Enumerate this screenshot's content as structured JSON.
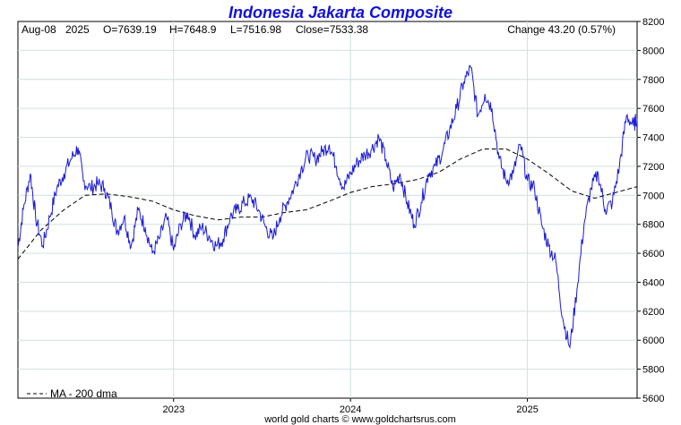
{
  "chart_data": {
    "type": "line",
    "title": "Indonesia Jakarta Composite",
    "info": {
      "date": "Aug-08",
      "year": "2025",
      "open": "O=7639.19",
      "high": "H=7648.9",
      "low": "L=7516.98",
      "close": "Close=7533.38",
      "change": "Change 43.20 (0.57%)"
    },
    "ylim": [
      5600,
      8200
    ],
    "yticks": [
      5600,
      5800,
      6000,
      6200,
      6400,
      6600,
      6800,
      7000,
      7200,
      7400,
      7600,
      7800,
      8000,
      8200
    ],
    "xlim": [
      2022.12,
      2025.62
    ],
    "xticks": [
      {
        "label": "2023",
        "value": 2023.0
      },
      {
        "label": "2024",
        "value": 2024.0
      },
      {
        "label": "2025",
        "value": 2025.0
      }
    ],
    "grid": true,
    "legend": "bottom-left",
    "legend_label": "MA - 200 dma",
    "footer": "world gold charts © www.goldchartsrus.com",
    "colors": {
      "price": "#1a1ad8",
      "ma": "#000000",
      "title": "#1010e0",
      "grid": "#cfe0e0"
    },
    "series": [
      {
        "kind": "price",
        "points": [
          [
            2022.12,
            6640
          ],
          [
            2022.15,
            6900
          ],
          [
            2022.19,
            7150
          ],
          [
            2022.22,
            6850
          ],
          [
            2022.26,
            6650
          ],
          [
            2022.3,
            6850
          ],
          [
            2022.34,
            7050
          ],
          [
            2022.38,
            7150
          ],
          [
            2022.42,
            7250
          ],
          [
            2022.46,
            7330
          ],
          [
            2022.49,
            7100
          ],
          [
            2022.53,
            7050
          ],
          [
            2022.57,
            7080
          ],
          [
            2022.61,
            7050
          ],
          [
            2022.65,
            6900
          ],
          [
            2022.68,
            6750
          ],
          [
            2022.72,
            6850
          ],
          [
            2022.76,
            6650
          ],
          [
            2022.8,
            6900
          ],
          [
            2022.84,
            6780
          ],
          [
            2022.88,
            6600
          ],
          [
            2022.92,
            6700
          ],
          [
            2022.96,
            6850
          ],
          [
            2023.0,
            6620
          ],
          [
            2023.04,
            6800
          ],
          [
            2023.08,
            6880
          ],
          [
            2023.12,
            6720
          ],
          [
            2023.16,
            6780
          ],
          [
            2023.2,
            6720
          ],
          [
            2023.24,
            6650
          ],
          [
            2023.28,
            6700
          ],
          [
            2023.32,
            6850
          ],
          [
            2023.36,
            6900
          ],
          [
            2023.4,
            6950
          ],
          [
            2023.44,
            6980
          ],
          [
            2023.48,
            6900
          ],
          [
            2023.52,
            6780
          ],
          [
            2023.56,
            6700
          ],
          [
            2023.6,
            6850
          ],
          [
            2023.64,
            6950
          ],
          [
            2023.68,
            7050
          ],
          [
            2023.72,
            7180
          ],
          [
            2023.76,
            7280
          ],
          [
            2023.8,
            7250
          ],
          [
            2023.84,
            7300
          ],
          [
            2023.88,
            7350
          ],
          [
            2023.92,
            7200
          ],
          [
            2023.96,
            7050
          ],
          [
            2024.0,
            7150
          ],
          [
            2024.04,
            7230
          ],
          [
            2024.08,
            7280
          ],
          [
            2024.12,
            7320
          ],
          [
            2024.16,
            7400
          ],
          [
            2024.2,
            7250
          ],
          [
            2024.24,
            7050
          ],
          [
            2024.28,
            7150
          ],
          [
            2024.32,
            6950
          ],
          [
            2024.36,
            6800
          ],
          [
            2024.4,
            6950
          ],
          [
            2024.44,
            7150
          ],
          [
            2024.48,
            7200
          ],
          [
            2024.52,
            7300
          ],
          [
            2024.56,
            7450
          ],
          [
            2024.6,
            7600
          ],
          [
            2024.64,
            7780
          ],
          [
            2024.68,
            7880
          ],
          [
            2024.72,
            7550
          ],
          [
            2024.76,
            7700
          ],
          [
            2024.8,
            7600
          ],
          [
            2024.84,
            7250
          ],
          [
            2024.88,
            7100
          ],
          [
            2024.92,
            7150
          ],
          [
            2024.96,
            7350
          ],
          [
            2025.0,
            7100
          ],
          [
            2025.04,
            7050
          ],
          [
            2025.08,
            6800
          ],
          [
            2025.12,
            6650
          ],
          [
            2025.16,
            6550
          ],
          [
            2025.2,
            6150
          ],
          [
            2025.24,
            5950
          ],
          [
            2025.28,
            6350
          ],
          [
            2025.32,
            6800
          ],
          [
            2025.36,
            7050
          ],
          [
            2025.4,
            7150
          ],
          [
            2025.44,
            6900
          ],
          [
            2025.48,
            6950
          ],
          [
            2025.52,
            7200
          ],
          [
            2025.56,
            7550
          ],
          [
            2025.6,
            7480
          ],
          [
            2025.62,
            7533
          ]
        ]
      },
      {
        "kind": "ma",
        "name": "MA - 200 dma",
        "points": [
          [
            2022.12,
            6560
          ],
          [
            2022.25,
            6760
          ],
          [
            2022.38,
            6900
          ],
          [
            2022.5,
            7000
          ],
          [
            2022.62,
            7010
          ],
          [
            2022.75,
            6990
          ],
          [
            2022.88,
            6960
          ],
          [
            2023.0,
            6900
          ],
          [
            2023.12,
            6860
          ],
          [
            2023.25,
            6830
          ],
          [
            2023.38,
            6850
          ],
          [
            2023.5,
            6850
          ],
          [
            2023.62,
            6880
          ],
          [
            2023.75,
            6900
          ],
          [
            2023.88,
            6960
          ],
          [
            2024.0,
            7020
          ],
          [
            2024.12,
            7060
          ],
          [
            2024.25,
            7080
          ],
          [
            2024.38,
            7110
          ],
          [
            2024.5,
            7160
          ],
          [
            2024.62,
            7250
          ],
          [
            2024.75,
            7320
          ],
          [
            2024.88,
            7320
          ],
          [
            2025.0,
            7250
          ],
          [
            2025.12,
            7150
          ],
          [
            2025.25,
            7030
          ],
          [
            2025.38,
            6980
          ],
          [
            2025.5,
            7020
          ],
          [
            2025.62,
            7060
          ]
        ]
      }
    ]
  }
}
